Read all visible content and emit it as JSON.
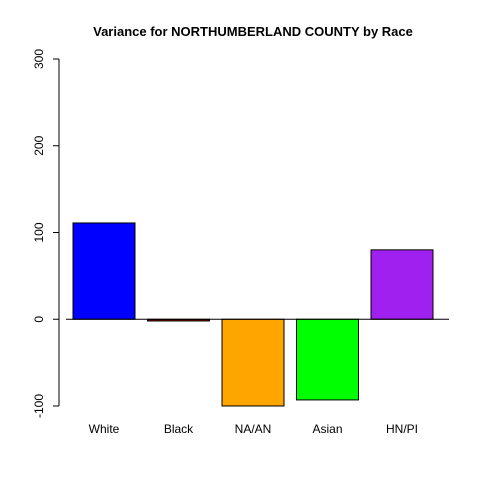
{
  "chart_data": {
    "type": "bar",
    "title": "Variance for NORTHUMBERLAND COUNTY by Race",
    "xlabel": "",
    "ylabel": "",
    "categories": [
      "White",
      "Black",
      "NA/AN",
      "Asian",
      "HN/PI"
    ],
    "values": [
      111,
      -2,
      -100,
      -93,
      80
    ],
    "colors": [
      "#0000FF",
      "#8B0000",
      "#FFA500",
      "#00FF00",
      "#A020F0"
    ],
    "ylim": [
      -100,
      300
    ],
    "yticks": [
      -100,
      0,
      100,
      200,
      300
    ],
    "baseline": 0,
    "grid": false,
    "legend": "none"
  }
}
